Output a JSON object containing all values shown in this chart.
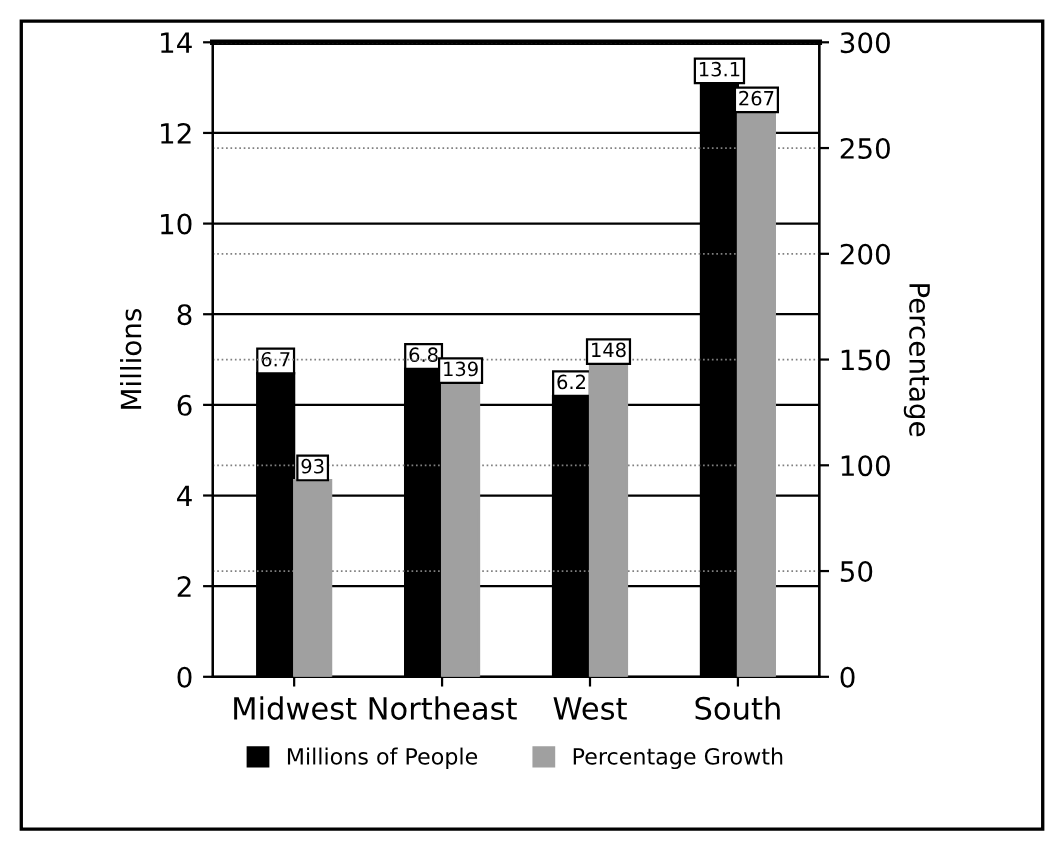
{
  "chart_data": {
    "type": "bar",
    "ylabel": "Millions",
    "y2label": "Percentage",
    "categories": [
      "Midwest",
      "Northeast",
      "West",
      "South"
    ],
    "series": [
      {
        "name": "Millions of People",
        "color": "#000000",
        "values": [
          6.7,
          6.8,
          6.2,
          13.1
        ]
      },
      {
        "name": "Percentage Growth",
        "color": "#a0a0a0",
        "values": [
          93,
          139,
          148,
          267
        ],
        "axis": "y2"
      }
    ],
    "ylim": [
      0,
      14
    ],
    "yticks": [
      0,
      2,
      4,
      6,
      8,
      10,
      12,
      14
    ],
    "y2lim": [
      0,
      300
    ],
    "y2ticks": [
      0,
      50,
      100,
      150,
      200,
      250,
      300
    ],
    "grid": true,
    "legend": "bottom",
    "data_labels": true
  }
}
